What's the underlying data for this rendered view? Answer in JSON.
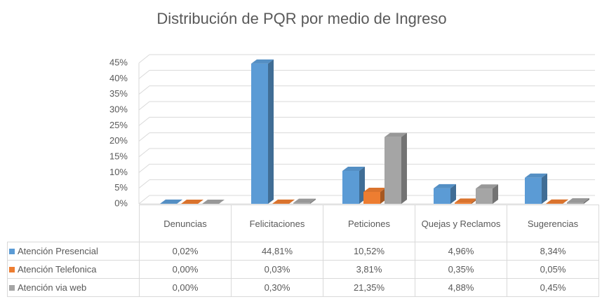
{
  "chart_data": {
    "type": "bar3d",
    "title": "Distribución de PQR por medio de Ingreso",
    "categories": [
      "Denuncias",
      "Felicitaciones",
      "Peticiones",
      "Quejas y Reclamos",
      "Sugerencias"
    ],
    "series": [
      {
        "name": "Atención Presencial",
        "color": "#5b9bd5",
        "values": [
          0.02,
          44.81,
          10.52,
          4.96,
          8.34
        ],
        "value_labels": [
          "0,02%",
          "44,81%",
          "10,52%",
          "4,96%",
          "8,34%"
        ]
      },
      {
        "name": "Atención Telefonica",
        "color": "#ed7d31",
        "values": [
          0,
          0.03,
          3.81,
          0.35,
          0.05
        ],
        "value_labels": [
          "0,00%",
          "0,03%",
          "3,81%",
          "0,35%",
          "0,05%"
        ]
      },
      {
        "name": "Atención via web",
        "color": "#a5a5a5",
        "values": [
          0,
          0.3,
          21.35,
          4.88,
          0.45
        ],
        "value_labels": [
          "0,00%",
          "0,30%",
          "21,35%",
          "4,88%",
          "0,45%"
        ]
      }
    ],
    "ylim": [
      0,
      45
    ],
    "yticks": [
      {
        "value": 0,
        "label": "0%"
      },
      {
        "value": 5,
        "label": "5%"
      },
      {
        "value": 10,
        "label": "10%"
      },
      {
        "value": 15,
        "label": "15%"
      },
      {
        "value": 20,
        "label": "20%"
      },
      {
        "value": 25,
        "label": "25%"
      },
      {
        "value": 30,
        "label": "30%"
      },
      {
        "value": 35,
        "label": "35%"
      },
      {
        "value": 40,
        "label": "40%"
      },
      {
        "value": 45,
        "label": "45%"
      }
    ],
    "grid": true
  }
}
